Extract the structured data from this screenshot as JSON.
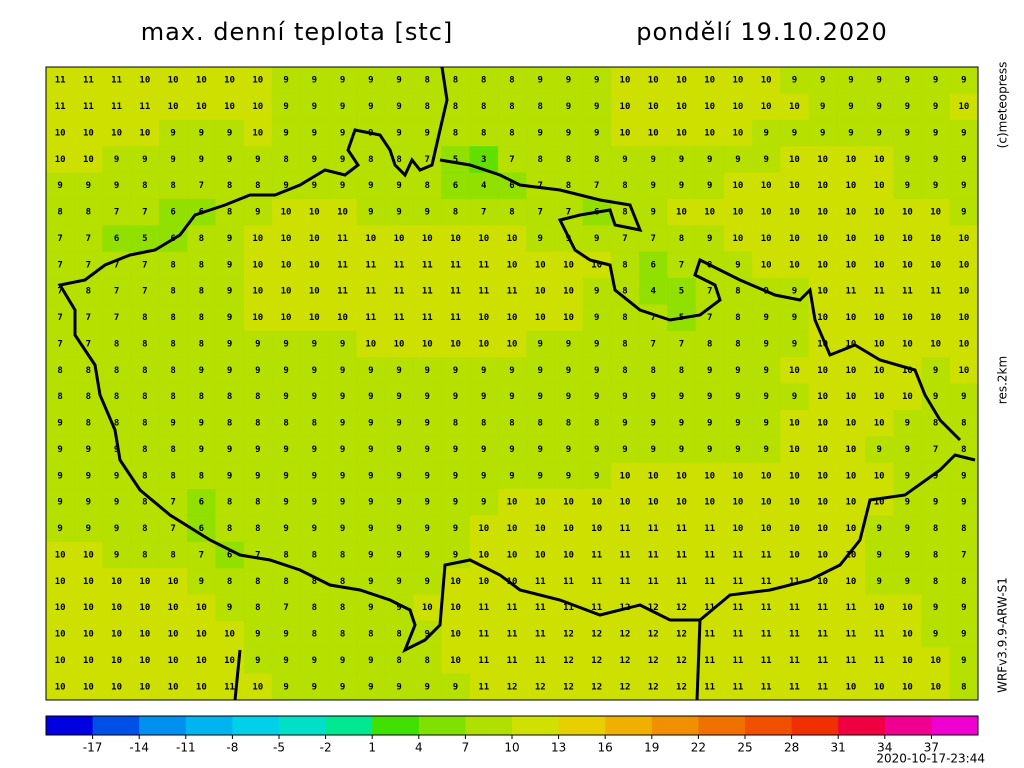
{
  "header": {
    "title": "max. denní teplota [stc]",
    "date": "pondělí 19.10.2020"
  },
  "side": {
    "copyright": "(c)meteopress",
    "resolution": "res.2km",
    "model": "WRFv3.9.9-ARW-S1"
  },
  "footer": {
    "timestamp": "2020-10-17-23:44"
  },
  "colorbar": {
    "lim": [
      -20,
      40
    ],
    "colors": [
      "#0000e0",
      "#0050e8",
      "#0090f0",
      "#00b4f0",
      "#00d0e8",
      "#00e0c8",
      "#00e890",
      "#40e000",
      "#80e000",
      "#b0e000",
      "#d0e000",
      "#e8d000",
      "#f0b000",
      "#f09000",
      "#f07000",
      "#f05000",
      "#f03000",
      "#f00040",
      "#f00090",
      "#f000d0"
    ],
    "ticks": [
      -17,
      -14,
      -11,
      -8,
      -5,
      -2,
      1,
      4,
      7,
      10,
      13,
      16,
      19,
      22,
      25,
      28,
      31,
      34,
      37
    ]
  },
  "grid": {
    "rows": [
      [
        11,
        11,
        11,
        10,
        10,
        10,
        10,
        10,
        9,
        9,
        9,
        9,
        9,
        8,
        8,
        8,
        8,
        9,
        9,
        9,
        10,
        10,
        10,
        10,
        10,
        10,
        9,
        9,
        9,
        9,
        9,
        9,
        9
      ],
      [
        11,
        11,
        11,
        11,
        10,
        10,
        10,
        10,
        9,
        9,
        9,
        9,
        9,
        8,
        8,
        8,
        8,
        8,
        9,
        9,
        10,
        10,
        10,
        10,
        10,
        10,
        10,
        9,
        9,
        9,
        9,
        9,
        10
      ],
      [
        10,
        10,
        10,
        10,
        9,
        9,
        9,
        10,
        9,
        9,
        9,
        9,
        9,
        9,
        8,
        8,
        8,
        9,
        9,
        9,
        10,
        10,
        10,
        10,
        10,
        9,
        9,
        9,
        9,
        9,
        9,
        9,
        9
      ],
      [
        10,
        10,
        9,
        9,
        9,
        9,
        9,
        9,
        8,
        9,
        9,
        8,
        8,
        7,
        5,
        3,
        7,
        8,
        8,
        8,
        9,
        9,
        9,
        9,
        9,
        9,
        10,
        10,
        10,
        10,
        9,
        9,
        9
      ],
      [
        9,
        9,
        9,
        8,
        8,
        7,
        8,
        8,
        9,
        9,
        9,
        9,
        9,
        8,
        6,
        4,
        6,
        7,
        8,
        7,
        8,
        9,
        9,
        9,
        10,
        10,
        10,
        10,
        10,
        10,
        9,
        9,
        9
      ],
      [
        8,
        8,
        7,
        7,
        6,
        6,
        8,
        9,
        10,
        10,
        10,
        9,
        9,
        9,
        8,
        7,
        8,
        7,
        7,
        6,
        8,
        9,
        10,
        10,
        10,
        10,
        10,
        10,
        10,
        10,
        10,
        10,
        9
      ],
      [
        7,
        7,
        6,
        5,
        6,
        8,
        9,
        10,
        10,
        10,
        11,
        10,
        10,
        10,
        10,
        10,
        10,
        9,
        9,
        9,
        7,
        7,
        8,
        9,
        10,
        10,
        10,
        10,
        10,
        10,
        10,
        10,
        10
      ],
      [
        7,
        7,
        7,
        7,
        8,
        8,
        9,
        10,
        10,
        10,
        11,
        11,
        11,
        11,
        11,
        11,
        10,
        10,
        10,
        10,
        8,
        6,
        7,
        8,
        9,
        10,
        10,
        10,
        10,
        10,
        10,
        10,
        10
      ],
      [
        7,
        8,
        7,
        7,
        8,
        8,
        9,
        10,
        10,
        10,
        11,
        11,
        11,
        11,
        11,
        11,
        11,
        10,
        10,
        9,
        8,
        4,
        5,
        7,
        8,
        9,
        9,
        10,
        11,
        11,
        11,
        11,
        10
      ],
      [
        7,
        7,
        7,
        8,
        8,
        8,
        9,
        10,
        10,
        10,
        10,
        11,
        11,
        11,
        11,
        10,
        10,
        10,
        10,
        9,
        8,
        7,
        5,
        7,
        8,
        9,
        9,
        10,
        10,
        10,
        10,
        10,
        10
      ],
      [
        7,
        7,
        8,
        8,
        8,
        8,
        9,
        9,
        9,
        9,
        9,
        10,
        10,
        10,
        10,
        10,
        10,
        9,
        9,
        9,
        8,
        7,
        7,
        8,
        8,
        9,
        9,
        10,
        10,
        10,
        10,
        10,
        10
      ],
      [
        8,
        8,
        8,
        8,
        8,
        9,
        9,
        9,
        9,
        9,
        9,
        9,
        9,
        9,
        9,
        9,
        9,
        9,
        9,
        9,
        8,
        8,
        8,
        9,
        9,
        9,
        10,
        10,
        10,
        10,
        10,
        9,
        10
      ],
      [
        8,
        8,
        8,
        8,
        8,
        8,
        8,
        8,
        9,
        9,
        9,
        9,
        9,
        9,
        9,
        9,
        9,
        9,
        9,
        9,
        9,
        9,
        9,
        9,
        9,
        9,
        9,
        10,
        10,
        10,
        10,
        9,
        9
      ],
      [
        9,
        8,
        8,
        8,
        9,
        9,
        8,
        8,
        8,
        8,
        9,
        9,
        9,
        9,
        8,
        8,
        8,
        8,
        8,
        8,
        9,
        9,
        9,
        9,
        9,
        9,
        10,
        10,
        10,
        10,
        9,
        8,
        8
      ],
      [
        9,
        9,
        9,
        8,
        8,
        9,
        9,
        9,
        9,
        9,
        9,
        9,
        9,
        9,
        9,
        9,
        9,
        9,
        9,
        9,
        9,
        9,
        9,
        9,
        9,
        9,
        10,
        10,
        10,
        9,
        9,
        7,
        8
      ],
      [
        9,
        9,
        9,
        8,
        8,
        8,
        9,
        9,
        9,
        9,
        9,
        9,
        9,
        9,
        9,
        9,
        9,
        9,
        9,
        9,
        10,
        10,
        10,
        10,
        10,
        10,
        10,
        10,
        10,
        10,
        9,
        9,
        9
      ],
      [
        9,
        9,
        9,
        8,
        7,
        6,
        8,
        8,
        9,
        9,
        9,
        9,
        9,
        9,
        9,
        9,
        10,
        10,
        10,
        10,
        10,
        10,
        10,
        10,
        10,
        10,
        10,
        10,
        10,
        10,
        9,
        9,
        9
      ],
      [
        9,
        9,
        9,
        8,
        7,
        6,
        8,
        8,
        9,
        9,
        9,
        9,
        9,
        9,
        9,
        10,
        10,
        10,
        10,
        10,
        11,
        11,
        11,
        11,
        10,
        10,
        10,
        10,
        10,
        9,
        9,
        8,
        8
      ],
      [
        10,
        10,
        9,
        8,
        8,
        7,
        6,
        7,
        8,
        8,
        8,
        9,
        9,
        9,
        9,
        10,
        10,
        10,
        10,
        11,
        11,
        11,
        11,
        11,
        11,
        11,
        10,
        10,
        10,
        9,
        9,
        8,
        7
      ],
      [
        10,
        10,
        10,
        10,
        10,
        9,
        8,
        8,
        8,
        8,
        8,
        9,
        9,
        9,
        10,
        10,
        10,
        11,
        11,
        11,
        11,
        11,
        11,
        11,
        11,
        11,
        11,
        10,
        10,
        9,
        9,
        8,
        8
      ],
      [
        10,
        10,
        10,
        10,
        10,
        10,
        9,
        8,
        7,
        8,
        8,
        9,
        9,
        10,
        10,
        11,
        11,
        11,
        11,
        11,
        12,
        12,
        12,
        11,
        11,
        11,
        11,
        11,
        11,
        10,
        10,
        9,
        9
      ],
      [
        10,
        10,
        10,
        10,
        10,
        10,
        10,
        9,
        9,
        8,
        8,
        8,
        8,
        9,
        10,
        11,
        11,
        11,
        12,
        12,
        12,
        12,
        12,
        11,
        11,
        11,
        11,
        11,
        11,
        11,
        10,
        9,
        9
      ],
      [
        10,
        10,
        10,
        10,
        10,
        10,
        10,
        9,
        9,
        9,
        9,
        9,
        8,
        8,
        10,
        11,
        11,
        11,
        12,
        12,
        12,
        12,
        12,
        11,
        11,
        11,
        11,
        11,
        11,
        11,
        10,
        10,
        9
      ],
      [
        10,
        10,
        10,
        10,
        10,
        10,
        11,
        10,
        9,
        9,
        9,
        9,
        9,
        9,
        9,
        11,
        12,
        12,
        12,
        12,
        12,
        12,
        12,
        11,
        11,
        11,
        11,
        11,
        10,
        10,
        10,
        10,
        8
      ]
    ]
  }
}
